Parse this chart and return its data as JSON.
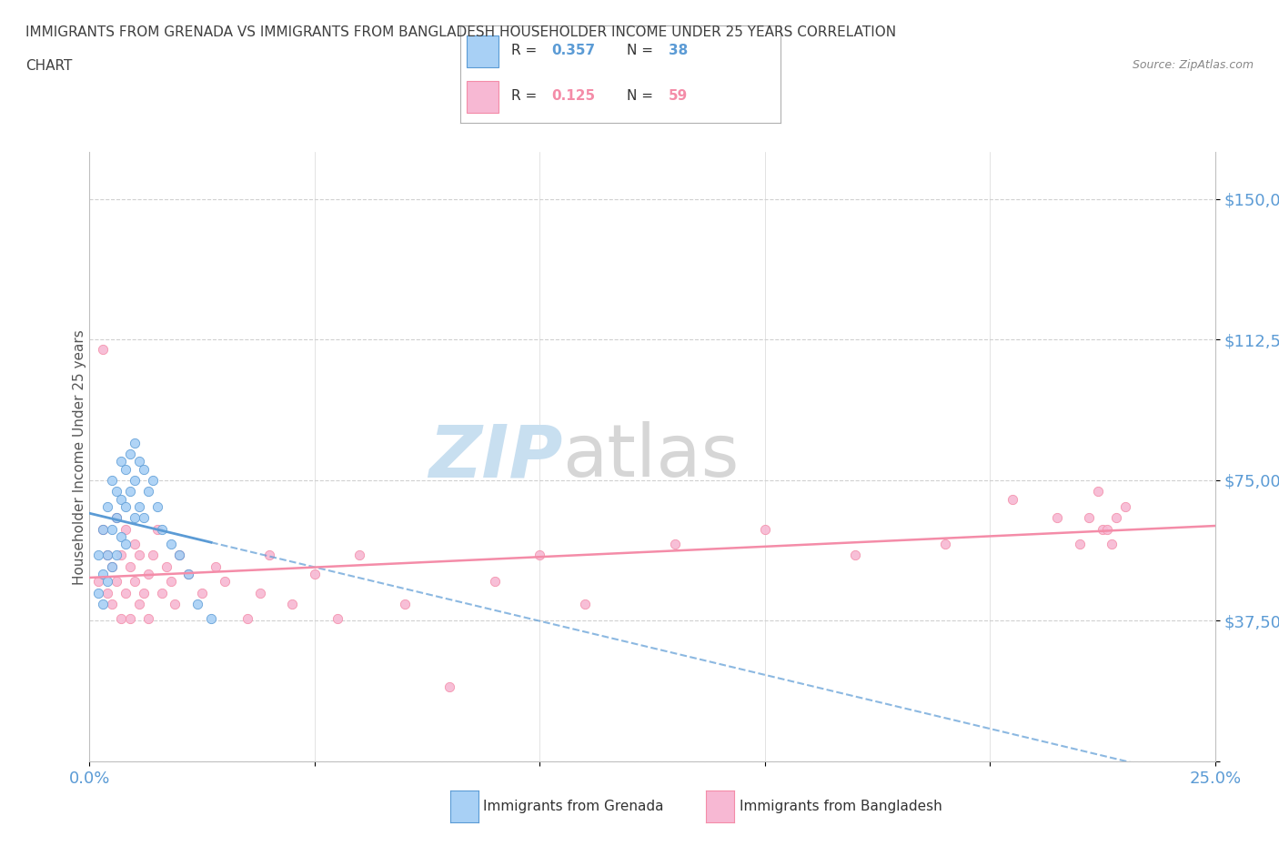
{
  "title_line1": "IMMIGRANTS FROM GRENADA VS IMMIGRANTS FROM BANGLADESH HOUSEHOLDER INCOME UNDER 25 YEARS CORRELATION",
  "title_line2": "CHART",
  "source": "Source: ZipAtlas.com",
  "ylabel": "Householder Income Under 25 years",
  "xlim": [
    0.0,
    0.25
  ],
  "ylim": [
    0,
    162500
  ],
  "yticks": [
    0,
    37500,
    75000,
    112500,
    150000
  ],
  "ytick_labels": [
    "",
    "$37,500",
    "$75,000",
    "$112,500",
    "$150,000"
  ],
  "xticks": [
    0.0,
    0.05,
    0.1,
    0.15,
    0.2,
    0.25
  ],
  "xtick_labels": [
    "0.0%",
    "",
    "",
    "",
    "",
    "25.0%"
  ],
  "watermark_zip": "ZIP",
  "watermark_atlas": "atlas",
  "legend_r1": "0.357",
  "legend_n1": "38",
  "legend_r2": "0.125",
  "legend_n2": "59",
  "color_grenada": "#a8d0f5",
  "color_bangladesh": "#f7b8d3",
  "color_trendline_grenada": "#5b9bd5",
  "color_trendline_bangladesh": "#f48ca8",
  "title_color": "#404040",
  "axis_color": "#5b9bd5",
  "watermark_color": "#c8dff0",
  "watermark_atlas_color": "#aaaaaa",
  "grenada_x": [
    0.002,
    0.002,
    0.003,
    0.003,
    0.003,
    0.004,
    0.004,
    0.004,
    0.005,
    0.005,
    0.005,
    0.006,
    0.006,
    0.006,
    0.007,
    0.007,
    0.007,
    0.008,
    0.008,
    0.008,
    0.009,
    0.009,
    0.01,
    0.01,
    0.01,
    0.011,
    0.011,
    0.012,
    0.012,
    0.013,
    0.014,
    0.015,
    0.016,
    0.018,
    0.02,
    0.022,
    0.024,
    0.027
  ],
  "grenada_y": [
    55000,
    45000,
    62000,
    50000,
    42000,
    68000,
    55000,
    48000,
    75000,
    62000,
    52000,
    72000,
    65000,
    55000,
    80000,
    70000,
    60000,
    78000,
    68000,
    58000,
    82000,
    72000,
    85000,
    75000,
    65000,
    80000,
    68000,
    78000,
    65000,
    72000,
    75000,
    68000,
    62000,
    58000,
    55000,
    50000,
    42000,
    38000
  ],
  "bangladesh_x": [
    0.002,
    0.003,
    0.003,
    0.004,
    0.004,
    0.005,
    0.005,
    0.006,
    0.006,
    0.007,
    0.007,
    0.008,
    0.008,
    0.009,
    0.009,
    0.01,
    0.01,
    0.011,
    0.011,
    0.012,
    0.013,
    0.013,
    0.014,
    0.015,
    0.016,
    0.017,
    0.018,
    0.019,
    0.02,
    0.022,
    0.025,
    0.028,
    0.03,
    0.035,
    0.038,
    0.04,
    0.045,
    0.05,
    0.055,
    0.06,
    0.07,
    0.08,
    0.09,
    0.1,
    0.11,
    0.13,
    0.15,
    0.17,
    0.19,
    0.205,
    0.215,
    0.22,
    0.222,
    0.224,
    0.225,
    0.226,
    0.227,
    0.228,
    0.23
  ],
  "bangladesh_y": [
    48000,
    110000,
    62000,
    45000,
    55000,
    52000,
    42000,
    65000,
    48000,
    55000,
    38000,
    62000,
    45000,
    52000,
    38000,
    58000,
    48000,
    55000,
    42000,
    45000,
    50000,
    38000,
    55000,
    62000,
    45000,
    52000,
    48000,
    42000,
    55000,
    50000,
    45000,
    52000,
    48000,
    38000,
    45000,
    55000,
    42000,
    50000,
    38000,
    55000,
    42000,
    20000,
    48000,
    55000,
    42000,
    58000,
    62000,
    55000,
    58000,
    70000,
    65000,
    58000,
    65000,
    72000,
    62000,
    62000,
    58000,
    65000,
    68000
  ]
}
